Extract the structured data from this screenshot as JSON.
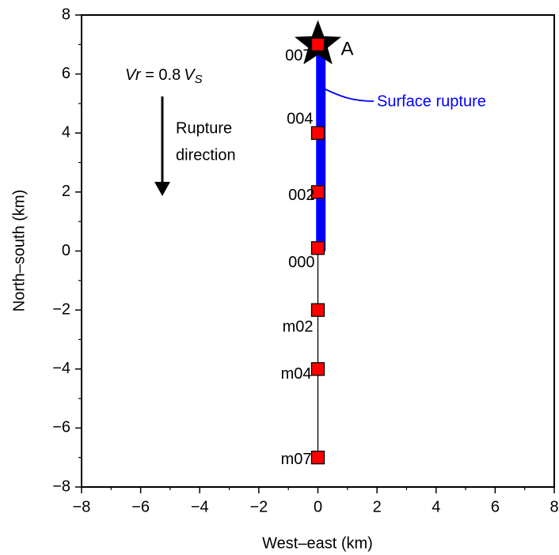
{
  "chart_data": {
    "type": "scatter",
    "xlabel": "West–east (km)",
    "ylabel": "North–south (km)",
    "xlim": [
      -8,
      8
    ],
    "ylim": [
      -8,
      8
    ],
    "xticks": [
      {
        "value": -8,
        "label": "−8"
      },
      {
        "value": -6,
        "label": "−6"
      },
      {
        "value": -4,
        "label": "−4"
      },
      {
        "value": -2,
        "label": "−2"
      },
      0,
      2,
      4,
      6,
      8
    ],
    "yticks": [
      {
        "value": -8,
        "label": "−8"
      },
      {
        "value": -6,
        "label": "−6"
      },
      {
        "value": -4,
        "label": "−4"
      },
      {
        "value": -2,
        "label": "−2"
      },
      0,
      2,
      4,
      6,
      8
    ],
    "xminor": [
      -7,
      -5,
      -3,
      -1,
      1,
      3,
      5,
      7
    ],
    "yminor": [
      -7,
      -5,
      -3,
      -1,
      1,
      3,
      5,
      7
    ],
    "series": [
      {
        "color": "#ff0000",
        "labels": [
          "007",
          "004",
          "002",
          "000",
          "m02",
          "m04",
          "m07"
        ],
        "x": [
          0,
          0,
          0,
          0,
          0,
          0,
          0
        ],
        "values": [
          7,
          4,
          2,
          0.1,
          -2,
          -4,
          -7
        ]
      }
    ],
    "surface_rupture": {
      "label": "Surface rupture",
      "color": "#0000ff",
      "x": [
        0.1,
        0.1
      ],
      "y": [
        0,
        7
      ]
    },
    "hypocenter": {
      "label": "A",
      "x": 0,
      "y": 7
    },
    "velocity_parts": [
      "Vr",
      " = 0.8",
      "V",
      "S"
    ],
    "direction_lines": [
      "Rupture",
      "direction"
    ]
  }
}
